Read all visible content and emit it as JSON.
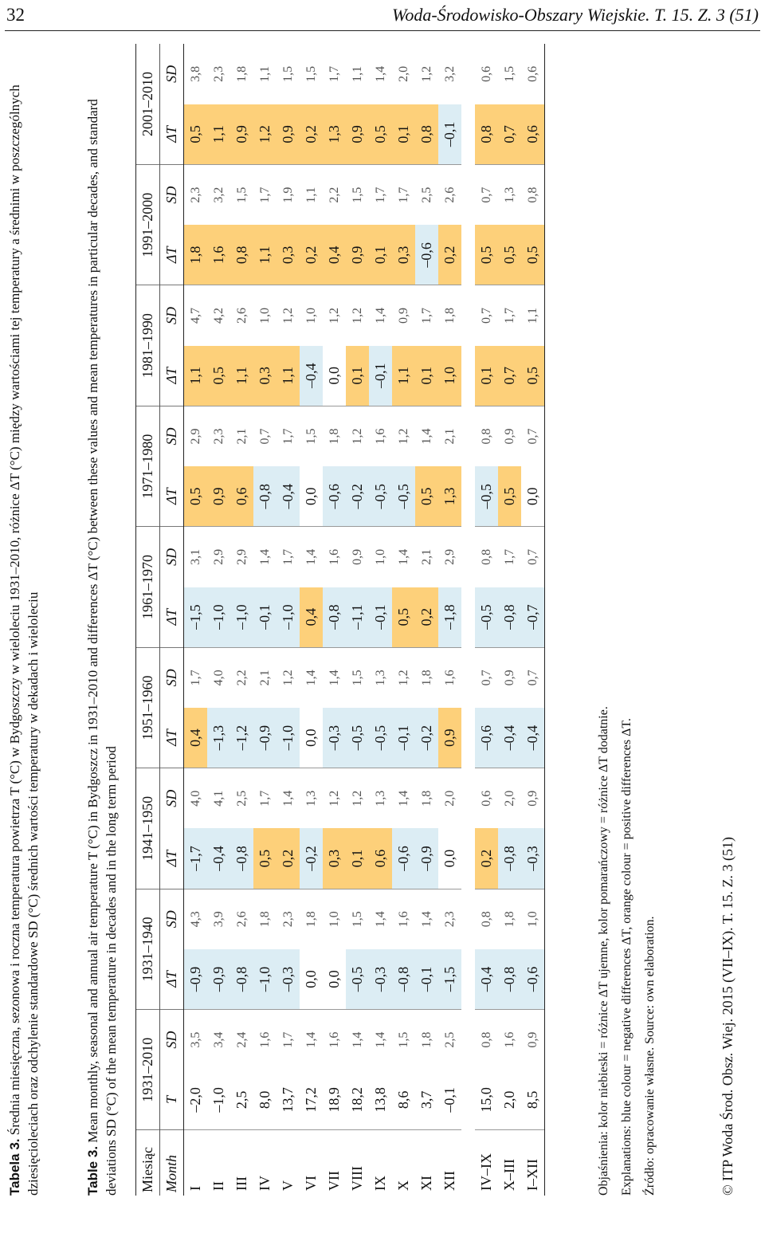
{
  "header": {
    "page_number": "32",
    "journal": "Woda-Środowisko-Obszary Wiejskie. T. 15. Z. 3 (51)"
  },
  "caption_pl": {
    "label": "Tabela 3.",
    "text": " Średnia miesięczna, sezonowa i roczna temperatura powietrza T (°C) w Bydgoszczy w wieloleciu 1931–2010, różnice ΔT (°C) między wartościami tej temperatury a średnimi w poszczególnych dziesięcioleciach oraz odchylenie standardowe SD (°C) średnich wartości temperatury w dekadach i wieloleciu"
  },
  "caption_en": {
    "label": "Table 3.",
    "text": " Mean monthly, seasonal and annual air temperature T (°C) in Bydgoszcz in 1931–2010 and differences ΔT (°C) between these values and mean temperatures in particular decades, and standard deviations SD (°C) of the mean temperature in decades and in the long term period"
  },
  "table": {
    "corner_pl": "Miesiąc",
    "corner_en": "Month",
    "periods": [
      "1931–2010",
      "1931–1940",
      "1941–1950",
      "1951–1960",
      "1961–1970",
      "1971–1980",
      "1981–1990",
      "1991–2000",
      "2001–2010"
    ],
    "sub": {
      "t": "T",
      "dt": "ΔT",
      "sd": "SD"
    },
    "rows": [
      {
        "m": "I",
        "v": [
          "–2,0",
          "3,5",
          "–0,9",
          "4,3",
          "–1,7",
          "4,0",
          "0,4",
          "1,7",
          "–1,5",
          "3,1",
          "0,5",
          "2,9",
          "1,1",
          "4,7",
          "1,8",
          "2,3",
          "0,5",
          "3,8"
        ]
      },
      {
        "m": "II",
        "v": [
          "–1,0",
          "3,4",
          "–0,9",
          "3,9",
          "–0,4",
          "4,1",
          "–1,3",
          "4,0",
          "–1,0",
          "2,9",
          "0,9",
          "2,3",
          "0,5",
          "4,2",
          "1,6",
          "3,2",
          "1,1",
          "2,3"
        ]
      },
      {
        "m": "III",
        "v": [
          "2,5",
          "2,4",
          "–0,8",
          "2,6",
          "–0,8",
          "2,5",
          "–1,2",
          "2,2",
          "–1,0",
          "2,9",
          "0,6",
          "2,1",
          "1,1",
          "2,6",
          "0,8",
          "1,5",
          "0,9",
          "1,8"
        ]
      },
      {
        "m": "IV",
        "v": [
          "8,0",
          "1,6",
          "–1,0",
          "1,8",
          "0,5",
          "1,7",
          "–0,9",
          "2,1",
          "–0,1",
          "1,4",
          "–0,8",
          "0,7",
          "0,3",
          "1,0",
          "1,1",
          "1,7",
          "1,2",
          "1,1"
        ]
      },
      {
        "m": "V",
        "v": [
          "13,7",
          "1,7",
          "–0,3",
          "2,3",
          "0,2",
          "1,4",
          "–1,0",
          "1,2",
          "–1,0",
          "1,7",
          "–0,4",
          "1,7",
          "1,1",
          "1,2",
          "0,3",
          "1,9",
          "0,9",
          "1,5"
        ]
      },
      {
        "m": "VI",
        "v": [
          "17,2",
          "1,4",
          "0,0",
          "1,8",
          "–0,2",
          "1,3",
          "0,0",
          "1,4",
          "0,4",
          "1,4",
          "0,0",
          "1,5",
          "–0,4",
          "1,0",
          "0,2",
          "1,1",
          "0,2",
          "1,5"
        ]
      },
      {
        "m": "VII",
        "v": [
          "18,9",
          "1,6",
          "0,0",
          "1,0",
          "0,3",
          "1,2",
          "–0,3",
          "1,4",
          "–0,8",
          "1,6",
          "–0,6",
          "1,8",
          "0,0",
          "1,2",
          "0,4",
          "2,2",
          "1,3",
          "1,7"
        ]
      },
      {
        "m": "VIII",
        "v": [
          "18,2",
          "1,4",
          "–0,5",
          "1,5",
          "0,1",
          "1,2",
          "–0,5",
          "1,5",
          "–1,1",
          "0,9",
          "–0,2",
          "1,2",
          "0,1",
          "1,2",
          "0,9",
          "1,5",
          "0,9",
          "1,1"
        ]
      },
      {
        "m": "IX",
        "v": [
          "13,8",
          "1,4",
          "–0,3",
          "1,4",
          "0,6",
          "1,3",
          "–0,5",
          "1,3",
          "–0,1",
          "1,0",
          "–0,5",
          "1,6",
          "–0,1",
          "1,4",
          "0,1",
          "1,7",
          "0,5",
          "1,4"
        ]
      },
      {
        "m": "X",
        "v": [
          "8,6",
          "1,5",
          "–0,8",
          "1,6",
          "–0,6",
          "1,4",
          "–0,1",
          "1,2",
          "0,5",
          "1,4",
          "–0,5",
          "1,2",
          "1,1",
          "0,9",
          "0,3",
          "1,7",
          "0,1",
          "2,0"
        ]
      },
      {
        "m": "XI",
        "v": [
          "3,7",
          "1,8",
          "–0,1",
          "1,4",
          "–0,9",
          "1,8",
          "–0,2",
          "1,8",
          "0,2",
          "2,1",
          "0,5",
          "1,4",
          "0,1",
          "1,7",
          "–0,6",
          "2,5",
          "0,8",
          "1,2"
        ]
      },
      {
        "m": "XII",
        "v": [
          "–0,1",
          "2,5",
          "–1,5",
          "2,3",
          "0,0",
          "2,0",
          "0,9",
          "1,6",
          "–1,8",
          "2,9",
          "1,3",
          "2,1",
          "1,0",
          "1,8",
          "0,2",
          "2,6",
          "–0,1",
          "3,2"
        ]
      },
      {
        "m": "IV–IX",
        "v": [
          "15,0",
          "0,8",
          "–0,4",
          "0,8",
          "0,2",
          "0,6",
          "–0,6",
          "0,7",
          "–0,5",
          "0,8",
          "–0,5",
          "0,8",
          "0,1",
          "0,7",
          "0,5",
          "0,7",
          "0,8",
          "0,6"
        ]
      },
      {
        "m": "X–III",
        "v": [
          "2,0",
          "1,6",
          "–0,8",
          "1,8",
          "–0,8",
          "2,0",
          "–0,4",
          "0,9",
          "–0,8",
          "1,7",
          "0,5",
          "0,9",
          "0,7",
          "1,7",
          "0,5",
          "1,3",
          "0,7",
          "1,5"
        ]
      },
      {
        "m": "I–XII",
        "v": [
          "8,5",
          "0,9",
          "–0,6",
          "1,0",
          "–0,3",
          "0,9",
          "–0,4",
          "0,7",
          "–0,7",
          "0,7",
          "0,0",
          "0,7",
          "0,5",
          "1,1",
          "0,5",
          "0,8",
          "0,6",
          "0,6"
        ]
      }
    ],
    "colors": {
      "negative": "#dcedf4",
      "positive": "#fdd07a"
    }
  },
  "notes": {
    "pl": "Objaśnienia: kolor niebieski = różnice ΔT ujemne, kolor pomarańczowy = różnice ΔT dodatnie.",
    "en": "Explanations: blue colour = negative differences ΔT, orange colour = positive differences ΔT.",
    "source": "Źródło: opracowanie własne.  Source: own elaboration."
  },
  "copyright": "© ITP Woda Środ. Obsz. Wiej. 2015 (VII–IX). T. 15. Z. 3 (51)"
}
